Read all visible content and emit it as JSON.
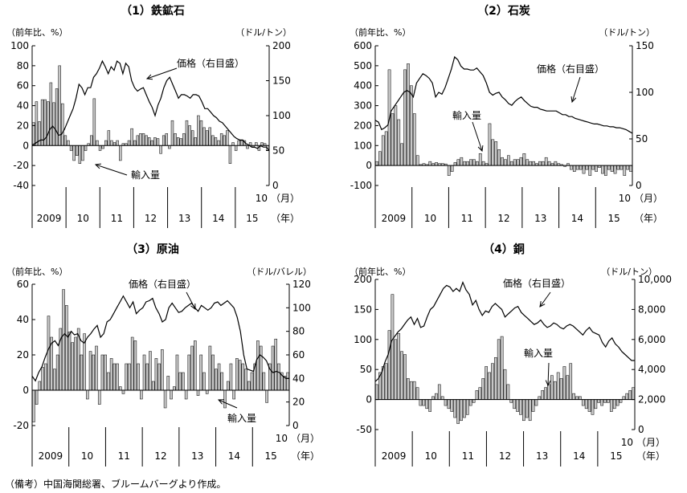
{
  "source_note": "（備考）中国海関総署、ブルームバーグより作成。",
  "colors": {
    "bar_fill": "#c8c8c8",
    "bar_stroke": "#000000",
    "line": "#000000",
    "axis": "#000000"
  },
  "chart_data": [
    {
      "type": "bar",
      "title": "（1）鉄鉱石",
      "left_unit": "（前年比、%）",
      "right_unit": "（ドル/トン）",
      "ylim": [
        -40,
        100
      ],
      "y_ticks": [
        -40,
        -20,
        0,
        20,
        40,
        60,
        80,
        100
      ],
      "y2lim": [
        0,
        200
      ],
      "y2_ticks": [
        0,
        50,
        100,
        150,
        200
      ],
      "year_labels": [
        "2009",
        "10",
        "11",
        "12",
        "13",
        "14",
        "15"
      ],
      "last_month_label": "10",
      "month_unit": "（月）",
      "year_unit": "（年）",
      "series": [
        {
          "name": "輸入量",
          "axis": "left",
          "kind": "bar",
          "values": [
            23,
            44,
            24,
            46,
            46,
            44,
            63,
            43,
            57,
            80,
            42,
            10,
            5,
            -5,
            -15,
            -10,
            -18,
            -15,
            -5,
            2,
            10,
            47,
            5,
            -5,
            -3,
            5,
            15,
            5,
            3,
            5,
            -15,
            2,
            2,
            5,
            17,
            5,
            10,
            12,
            12,
            10,
            8,
            5,
            8,
            7,
            -8,
            10,
            12,
            -3,
            25,
            12,
            8,
            7,
            12,
            25,
            20,
            15,
            8,
            30,
            25,
            18,
            15,
            18,
            10,
            8,
            5,
            12,
            10,
            15,
            -18,
            3,
            -5,
            5,
            5,
            5,
            -3,
            3,
            -2,
            3,
            -5,
            3,
            2,
            -5
          ]
        },
        {
          "name": "価格（右目盛）",
          "axis": "right",
          "kind": "line",
          "values": [
            58,
            60,
            63,
            65,
            65,
            70,
            80,
            85,
            80,
            72,
            73,
            80,
            90,
            100,
            110,
            125,
            145,
            140,
            130,
            140,
            140,
            155,
            160,
            168,
            178,
            170,
            160,
            170,
            165,
            178,
            175,
            160,
            175,
            170,
            150,
            140,
            135,
            138,
            140,
            130,
            120,
            112,
            100,
            115,
            125,
            140,
            150,
            155,
            145,
            135,
            125,
            130,
            130,
            128,
            125,
            130,
            130,
            128,
            120,
            110,
            110,
            105,
            100,
            97,
            92,
            90,
            85,
            80,
            75,
            70,
            67,
            65,
            65,
            60,
            58,
            55,
            55,
            53,
            57,
            55,
            55,
            50
          ]
        }
      ],
      "annotations": [
        "価格（右目盛）",
        "輸入量"
      ]
    },
    {
      "type": "bar",
      "title": "（2）石炭",
      "left_unit": "（前年比、%）",
      "right_unit": "（ドル/トン）",
      "ylim": [
        -100,
        600
      ],
      "y_ticks": [
        -100,
        0,
        100,
        200,
        300,
        400,
        500,
        600
      ],
      "y2lim": [
        0,
        150
      ],
      "y2_ticks": [
        0,
        50,
        100,
        150
      ],
      "year_labels": [
        "2009",
        "10",
        "11",
        "12",
        "13",
        "14",
        "15"
      ],
      "last_month_label": "10",
      "month_unit": "（月）",
      "year_unit": "（年）",
      "series": [
        {
          "name": "輸入量",
          "axis": "left",
          "kind": "bar",
          "values": [
            20,
            70,
            150,
            170,
            480,
            260,
            300,
            230,
            110,
            480,
            510,
            400,
            260,
            50,
            5,
            10,
            5,
            20,
            10,
            15,
            10,
            10,
            8,
            -50,
            -30,
            15,
            30,
            40,
            20,
            20,
            30,
            30,
            20,
            60,
            20,
            10,
            210,
            130,
            120,
            80,
            40,
            30,
            50,
            20,
            30,
            30,
            40,
            60,
            30,
            20,
            20,
            10,
            20,
            20,
            40,
            20,
            10,
            20,
            10,
            5,
            -5,
            10,
            -20,
            -30,
            -20,
            -20,
            -40,
            -20,
            -50,
            -20,
            -30,
            -10,
            -40,
            -50,
            -20,
            -30,
            -40,
            -20,
            -20,
            -50,
            -20,
            -30
          ]
        },
        {
          "name": "価格（右目盛）",
          "axis": "right",
          "kind": "line",
          "values": [
            70,
            68,
            60,
            62,
            65,
            80,
            85,
            90,
            95,
            100,
            102,
            100,
            95,
            110,
            115,
            120,
            118,
            115,
            110,
            95,
            100,
            98,
            105,
            115,
            125,
            138,
            135,
            128,
            125,
            125,
            124,
            124,
            126,
            122,
            118,
            110,
            100,
            97,
            99,
            100,
            95,
            92,
            88,
            86,
            90,
            93,
            95,
            91,
            88,
            85,
            84,
            84,
            82,
            81,
            80,
            80,
            80,
            80,
            78,
            76,
            76,
            74,
            74,
            72,
            71,
            70,
            69,
            68,
            67,
            66,
            66,
            65,
            64,
            64,
            63,
            63,
            62,
            62,
            61,
            60,
            58,
            56
          ]
        }
      ],
      "annotations": [
        "価格（右目盛）",
        "輸入量"
      ]
    },
    {
      "type": "bar",
      "title": "（3）原油",
      "left_unit": "（前年比、%）",
      "right_unit": "（ドル/バレル）",
      "ylim": [
        -20,
        60
      ],
      "y_ticks": [
        -20,
        0,
        20,
        40,
        60
      ],
      "y2lim": [
        0,
        120
      ],
      "y2_ticks": [
        0,
        20,
        40,
        60,
        80,
        100,
        120
      ],
      "year_labels": [
        "2009",
        "10",
        "11",
        "12",
        "13",
        "14",
        "15"
      ],
      "last_month_label": "10",
      "month_unit": "（月）",
      "year_unit": "（年）",
      "series": [
        {
          "name": "輸入量",
          "axis": "left",
          "kind": "bar",
          "values": [
            -18,
            -8,
            5,
            13,
            15,
            42,
            30,
            12,
            20,
            35,
            57,
            48,
            33,
            27,
            30,
            35,
            20,
            32,
            -5,
            22,
            20,
            25,
            -8,
            20,
            20,
            10,
            18,
            15,
            15,
            2,
            -2,
            15,
            15,
            30,
            28,
            15,
            -5,
            20,
            15,
            22,
            5,
            18,
            15,
            23,
            -10,
            8,
            -5,
            2,
            20,
            10,
            10,
            -5,
            20,
            25,
            28,
            -3,
            20,
            10,
            -2,
            25,
            20,
            12,
            15,
            10,
            -10,
            5,
            15,
            -5,
            18,
            17,
            15,
            12,
            5,
            10,
            15,
            28,
            25,
            10,
            -7,
            15,
            25,
            29,
            15,
            10,
            8,
            10
          ]
        },
        {
          "name": "価格（右目盛）",
          "axis": "right",
          "kind": "line",
          "values": [
            42,
            38,
            45,
            50,
            58,
            65,
            70,
            72,
            68,
            75,
            78,
            75,
            80,
            77,
            78,
            72,
            70,
            75,
            78,
            82,
            85,
            75,
            78,
            88,
            90,
            95,
            100,
            105,
            110,
            105,
            100,
            105,
            95,
            98,
            100,
            105,
            106,
            108,
            100,
            95,
            88,
            90,
            100,
            104,
            100,
            96,
            97,
            100,
            102,
            104,
            100,
            97,
            102,
            100,
            98,
            100,
            104,
            105,
            102,
            104,
            106,
            103,
            100,
            92,
            80,
            60,
            48,
            47,
            46,
            56,
            60,
            58,
            55,
            48,
            45,
            46,
            45,
            42,
            40,
            40
          ]
        }
      ],
      "annotations": [
        "価格（右目盛）",
        "輸入量"
      ]
    },
    {
      "type": "bar",
      "title": "（4）銅",
      "left_unit": "（前年比、%）",
      "right_unit": "（ドル/トン）",
      "ylim": [
        -50,
        200
      ],
      "y_ticks": [
        -50,
        0,
        50,
        100,
        150,
        200
      ],
      "y2lim": [
        0,
        10000
      ],
      "y2_ticks": [
        0,
        2000,
        4000,
        6000,
        8000,
        10000
      ],
      "y2_tick_labels": [
        "0",
        "2,000",
        "4,000",
        "6,000",
        "8,000",
        "10,000"
      ],
      "year_labels": [
        "2009",
        "10",
        "11",
        "12",
        "13",
        "14",
        "15"
      ],
      "last_month_label": "10",
      "month_unit": "（月）",
      "year_unit": "（年）",
      "series": [
        {
          "name": "輸入量",
          "axis": "left",
          "kind": "bar",
          "values": [
            25,
            45,
            55,
            60,
            115,
            175,
            100,
            110,
            80,
            75,
            35,
            30,
            30,
            20,
            -10,
            -10,
            -15,
            -20,
            5,
            10,
            25,
            5,
            -10,
            -15,
            -20,
            -30,
            -40,
            -35,
            -30,
            -25,
            -10,
            -5,
            15,
            20,
            35,
            55,
            45,
            60,
            70,
            100,
            105,
            50,
            25,
            -5,
            -15,
            -20,
            -25,
            -35,
            -30,
            -35,
            -20,
            -10,
            5,
            15,
            20,
            25,
            40,
            30,
            45,
            35,
            55,
            40,
            60,
            10,
            5,
            5,
            -10,
            -15,
            -20,
            -25,
            -15,
            -5,
            -10,
            -5,
            -5,
            -20,
            -15,
            -10,
            -5,
            5,
            10,
            15,
            20
          ]
        },
        {
          "name": "価格（右目盛）",
          "axis": "right",
          "kind": "line",
          "values": [
            3200,
            3400,
            3800,
            4500,
            5000,
            5900,
            6200,
            6500,
            6700,
            7000,
            7300,
            7500,
            7000,
            7400,
            6800,
            6900,
            7500,
            8000,
            8200,
            8600,
            9000,
            9400,
            9600,
            9500,
            9200,
            9400,
            9200,
            9800,
            9300,
            9000,
            8300,
            8600,
            8000,
            7600,
            7900,
            7800,
            8200,
            8400,
            8200,
            8000,
            7500,
            7700,
            7900,
            8100,
            8200,
            7800,
            7600,
            7400,
            7200,
            7000,
            7100,
            7300,
            7000,
            6800,
            6900,
            7100,
            7000,
            6800,
            6700,
            6900,
            7000,
            6900,
            6700,
            6500,
            6300,
            6600,
            6800,
            6500,
            6400,
            6300,
            5800,
            5500,
            5900,
            6100,
            5700,
            5500,
            5200,
            5000,
            4800,
            4600,
            4600
          ]
        }
      ],
      "annotations": [
        "価格（右目盛）",
        "輸入量"
      ]
    }
  ]
}
